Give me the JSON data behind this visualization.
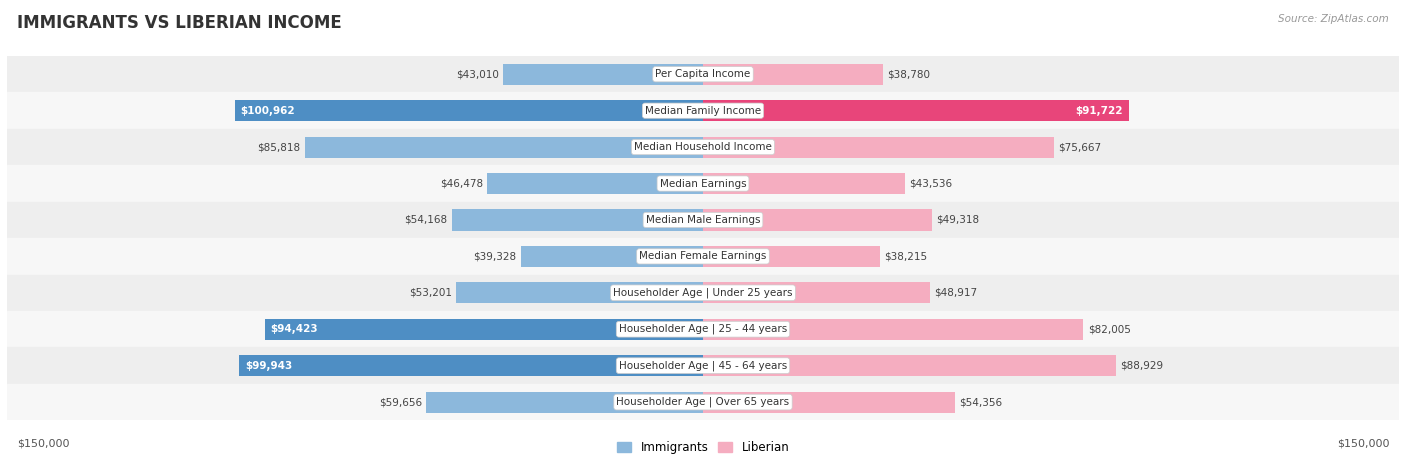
{
  "title": "IMMIGRANTS VS LIBERIAN INCOME",
  "source": "Source: ZipAtlas.com",
  "categories": [
    "Per Capita Income",
    "Median Family Income",
    "Median Household Income",
    "Median Earnings",
    "Median Male Earnings",
    "Median Female Earnings",
    "Householder Age | Under 25 years",
    "Householder Age | 25 - 44 years",
    "Householder Age | 45 - 64 years",
    "Householder Age | Over 65 years"
  ],
  "immigrants": [
    43010,
    100962,
    85818,
    46478,
    54168,
    39328,
    53201,
    94423,
    99943,
    59656
  ],
  "liberian": [
    38780,
    91722,
    75667,
    43536,
    49318,
    38215,
    48917,
    82005,
    88929,
    54356
  ],
  "immigrants_color": "#8cb8dc",
  "liberian_color": "#f5adc0",
  "immigrants_highlight": [
    false,
    true,
    false,
    false,
    false,
    false,
    false,
    true,
    true,
    false
  ],
  "liberian_highlight": [
    false,
    true,
    false,
    false,
    false,
    false,
    false,
    false,
    false,
    false
  ],
  "immigrants_highlight_color": "#4e8ec4",
  "liberian_highlight_color": "#e8457a",
  "max_val": 150000,
  "background_color": "#ffffff",
  "row_bg_light": "#f7f7f7",
  "row_bg_dark": "#eeeeee",
  "label_box_color": "#ffffff",
  "legend_immigrants": "Immigrants",
  "legend_liberian": "Liberian",
  "bottom_left_label": "$150,000",
  "bottom_right_label": "$150,000"
}
